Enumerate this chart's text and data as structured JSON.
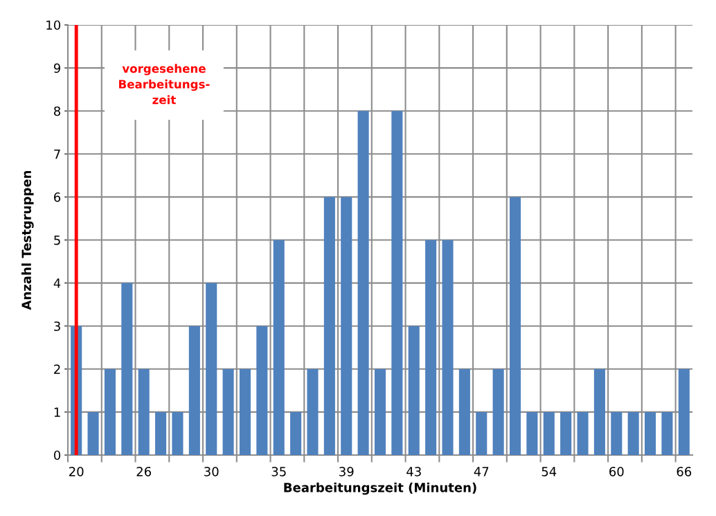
{
  "chart_data": {
    "type": "bar",
    "xlabel": "Bearbeitungszeit (Minuten)",
    "ylabel": "Anzahl Testgruppen",
    "categories": [
      "20",
      null,
      null,
      null,
      "26",
      null,
      null,
      null,
      "30",
      null,
      null,
      null,
      "35",
      null,
      null,
      null,
      "39",
      null,
      null,
      null,
      "43",
      null,
      null,
      null,
      "47",
      null,
      null,
      null,
      "54",
      null,
      null,
      null,
      "60",
      null,
      null,
      null,
      "66"
    ],
    "values": [
      3,
      1,
      2,
      4,
      2,
      1,
      1,
      3,
      4,
      2,
      2,
      3,
      5,
      1,
      2,
      6,
      6,
      8,
      2,
      8,
      3,
      5,
      5,
      2,
      1,
      2,
      6,
      1,
      1,
      1,
      1,
      2,
      1,
      1,
      1,
      1,
      2
    ],
    "color": "#4f81bd",
    "ylim": [
      0,
      10
    ],
    "yticks": [
      0,
      1,
      2,
      3,
      4,
      5,
      6,
      7,
      8,
      9,
      10
    ],
    "grid": true,
    "ref_lines": [
      {
        "axis": "x",
        "value": "20",
        "label": "vorgesehene\nBearbeitungs-\nzeit",
        "color": "#ff0000"
      }
    ]
  }
}
